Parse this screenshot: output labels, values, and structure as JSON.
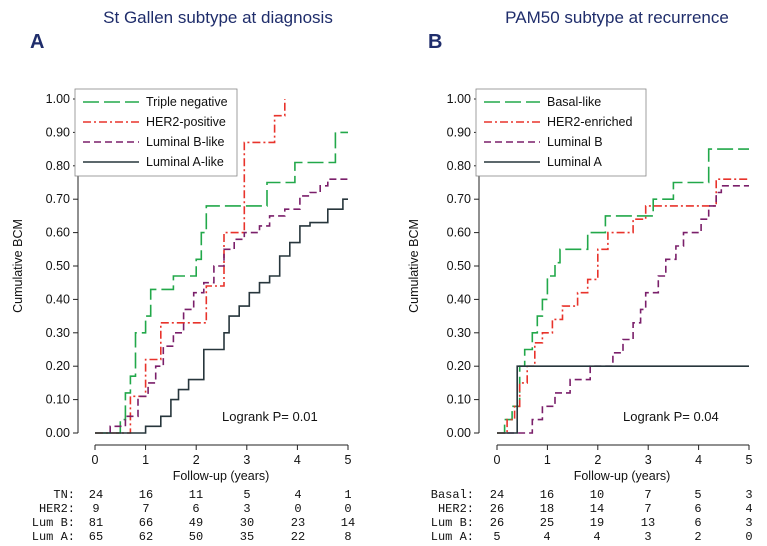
{
  "chart_data": [
    {
      "type": "line",
      "panel_letter": "A",
      "title": "St Gallen subtype at diagnosis",
      "xlabel": "Follow-up (years)",
      "ylabel": "Cumulative BCM",
      "xlim": [
        0,
        5
      ],
      "ylim": [
        0,
        1
      ],
      "x_ticks": [
        "0",
        "1",
        "2",
        "3",
        "4",
        "5"
      ],
      "y_ticks": [
        "0.00",
        "0.10",
        "0.20",
        "0.30",
        "0.40",
        "0.50",
        "0.60",
        "0.70",
        "0.80",
        "0.90",
        "1.00"
      ],
      "grid": false,
      "legend_position": "top-left",
      "annotation": "Logrank P= 0.01",
      "series": [
        {
          "name": "Triple negative",
          "color": "#22a84a",
          "dash": "long-dash",
          "steps": [
            [
              0,
              0
            ],
            [
              0.5,
              0
            ],
            [
              0.5,
              0.04
            ],
            [
              0.6,
              0.04
            ],
            [
              0.6,
              0.12
            ],
            [
              0.7,
              0.12
            ],
            [
              0.7,
              0.17
            ],
            [
              0.8,
              0.17
            ],
            [
              0.8,
              0.3
            ],
            [
              1.0,
              0.3
            ],
            [
              1.0,
              0.35
            ],
            [
              1.1,
              0.35
            ],
            [
              1.1,
              0.43
            ],
            [
              1.55,
              0.43
            ],
            [
              1.55,
              0.47
            ],
            [
              2.0,
              0.47
            ],
            [
              2.0,
              0.52
            ],
            [
              2.1,
              0.52
            ],
            [
              2.1,
              0.6
            ],
            [
              2.2,
              0.6
            ],
            [
              2.2,
              0.68
            ],
            [
              3.4,
              0.68
            ],
            [
              3.4,
              0.75
            ],
            [
              3.95,
              0.75
            ],
            [
              3.95,
              0.81
            ],
            [
              4.75,
              0.81
            ],
            [
              4.75,
              0.9
            ],
            [
              5.0,
              0.9
            ]
          ]
        },
        {
          "name": "HER2-positive",
          "color": "#e8332b",
          "dash": "dash-dot",
          "steps": [
            [
              0,
              0
            ],
            [
              0.7,
              0
            ],
            [
              0.7,
              0.11
            ],
            [
              1.0,
              0.11
            ],
            [
              1.0,
              0.22
            ],
            [
              1.3,
              0.22
            ],
            [
              1.3,
              0.33
            ],
            [
              2.2,
              0.33
            ],
            [
              2.2,
              0.44
            ],
            [
              2.55,
              0.44
            ],
            [
              2.55,
              0.6
            ],
            [
              2.95,
              0.6
            ],
            [
              2.95,
              0.87
            ],
            [
              3.55,
              0.87
            ],
            [
              3.55,
              0.95
            ],
            [
              3.75,
              0.95
            ],
            [
              3.75,
              1.0
            ]
          ]
        },
        {
          "name": "Luminal B-like",
          "color": "#7a1f6a",
          "dash": "medium-dash",
          "steps": [
            [
              0.3,
              0
            ],
            [
              0.3,
              0.02
            ],
            [
              0.6,
              0.02
            ],
            [
              0.6,
              0.05
            ],
            [
              0.85,
              0.05
            ],
            [
              0.85,
              0.11
            ],
            [
              1.05,
              0.11
            ],
            [
              1.05,
              0.15
            ],
            [
              1.2,
              0.15
            ],
            [
              1.2,
              0.2
            ],
            [
              1.35,
              0.2
            ],
            [
              1.35,
              0.26
            ],
            [
              1.55,
              0.26
            ],
            [
              1.55,
              0.3
            ],
            [
              1.75,
              0.3
            ],
            [
              1.75,
              0.37
            ],
            [
              1.95,
              0.37
            ],
            [
              1.95,
              0.42
            ],
            [
              2.15,
              0.42
            ],
            [
              2.15,
              0.45
            ],
            [
              2.35,
              0.45
            ],
            [
              2.35,
              0.5
            ],
            [
              2.55,
              0.5
            ],
            [
              2.55,
              0.55
            ],
            [
              2.75,
              0.55
            ],
            [
              2.75,
              0.58
            ],
            [
              2.95,
              0.58
            ],
            [
              2.95,
              0.6
            ],
            [
              3.25,
              0.6
            ],
            [
              3.25,
              0.62
            ],
            [
              3.45,
              0.62
            ],
            [
              3.45,
              0.65
            ],
            [
              3.75,
              0.65
            ],
            [
              3.75,
              0.67
            ],
            [
              4.05,
              0.67
            ],
            [
              4.05,
              0.71
            ],
            [
              4.25,
              0.71
            ],
            [
              4.25,
              0.72
            ],
            [
              4.45,
              0.72
            ],
            [
              4.45,
              0.74
            ],
            [
              4.6,
              0.74
            ],
            [
              4.6,
              0.76
            ],
            [
              5.0,
              0.76
            ]
          ]
        },
        {
          "name": "Luminal A-like",
          "color": "#27363c",
          "dash": "solid",
          "steps": [
            [
              0,
              0
            ],
            [
              1.0,
              0
            ],
            [
              1.0,
              0.02
            ],
            [
              1.3,
              0.02
            ],
            [
              1.3,
              0.05
            ],
            [
              1.5,
              0.05
            ],
            [
              1.5,
              0.1
            ],
            [
              1.65,
              0.1
            ],
            [
              1.65,
              0.13
            ],
            [
              1.85,
              0.13
            ],
            [
              1.85,
              0.16
            ],
            [
              2.15,
              0.16
            ],
            [
              2.15,
              0.25
            ],
            [
              2.55,
              0.25
            ],
            [
              2.55,
              0.3
            ],
            [
              2.65,
              0.3
            ],
            [
              2.65,
              0.35
            ],
            [
              2.85,
              0.35
            ],
            [
              2.85,
              0.38
            ],
            [
              3.05,
              0.38
            ],
            [
              3.05,
              0.42
            ],
            [
              3.25,
              0.42
            ],
            [
              3.25,
              0.45
            ],
            [
              3.45,
              0.45
            ],
            [
              3.45,
              0.47
            ],
            [
              3.65,
              0.47
            ],
            [
              3.65,
              0.53
            ],
            [
              3.85,
              0.53
            ],
            [
              3.85,
              0.57
            ],
            [
              4.05,
              0.57
            ],
            [
              4.05,
              0.62
            ],
            [
              4.25,
              0.62
            ],
            [
              4.25,
              0.63
            ],
            [
              4.6,
              0.63
            ],
            [
              4.6,
              0.67
            ],
            [
              4.9,
              0.67
            ],
            [
              4.9,
              0.7
            ],
            [
              5.0,
              0.7
            ]
          ]
        }
      ],
      "risk_table": [
        {
          "label": "TN:",
          "values": [
            "24",
            "16",
            "11",
            "5",
            "4",
            "1"
          ]
        },
        {
          "label": "HER2:",
          "values": [
            "9",
            "7",
            "6",
            "3",
            "0",
            "0"
          ]
        },
        {
          "label": "Lum B:",
          "values": [
            "81",
            "66",
            "49",
            "30",
            "23",
            "14"
          ]
        },
        {
          "label": "Lum A:",
          "values": [
            "65",
            "62",
            "50",
            "35",
            "22",
            "8"
          ]
        }
      ]
    },
    {
      "type": "line",
      "panel_letter": "B",
      "title": "PAM50 subtype at recurrence",
      "xlabel": "Follow-up (years)",
      "ylabel": "Cumulative BCM",
      "xlim": [
        0,
        5
      ],
      "ylim": [
        0,
        1
      ],
      "x_ticks": [
        "0",
        "1",
        "2",
        "3",
        "4",
        "5"
      ],
      "y_ticks": [
        "0.00",
        "0.10",
        "0.20",
        "0.30",
        "0.40",
        "0.50",
        "0.60",
        "0.70",
        "0.80",
        "0.90",
        "1.00"
      ],
      "grid": false,
      "legend_position": "top-left",
      "annotation": "Logrank P= 0.04",
      "series": [
        {
          "name": "Basal-like",
          "color": "#22a84a",
          "dash": "long-dash",
          "steps": [
            [
              0,
              0
            ],
            [
              0.15,
              0
            ],
            [
              0.15,
              0.04
            ],
            [
              0.3,
              0.04
            ],
            [
              0.3,
              0.08
            ],
            [
              0.45,
              0.08
            ],
            [
              0.45,
              0.2
            ],
            [
              0.55,
              0.2
            ],
            [
              0.55,
              0.25
            ],
            [
              0.7,
              0.25
            ],
            [
              0.7,
              0.3
            ],
            [
              0.8,
              0.3
            ],
            [
              0.8,
              0.35
            ],
            [
              0.9,
              0.35
            ],
            [
              0.9,
              0.4
            ],
            [
              1.0,
              0.4
            ],
            [
              1.0,
              0.47
            ],
            [
              1.15,
              0.47
            ],
            [
              1.15,
              0.51
            ],
            [
              1.25,
              0.51
            ],
            [
              1.25,
              0.55
            ],
            [
              1.8,
              0.55
            ],
            [
              1.8,
              0.6
            ],
            [
              2.15,
              0.6
            ],
            [
              2.15,
              0.65
            ],
            [
              3.1,
              0.65
            ],
            [
              3.1,
              0.7
            ],
            [
              3.5,
              0.7
            ],
            [
              3.5,
              0.75
            ],
            [
              4.2,
              0.75
            ],
            [
              4.2,
              0.85
            ],
            [
              5.0,
              0.85
            ]
          ]
        },
        {
          "name": "HER2-enriched",
          "color": "#e8332b",
          "dash": "dash-dot",
          "steps": [
            [
              0,
              0
            ],
            [
              0.2,
              0
            ],
            [
              0.2,
              0.04
            ],
            [
              0.35,
              0.04
            ],
            [
              0.35,
              0.08
            ],
            [
              0.45,
              0.08
            ],
            [
              0.45,
              0.15
            ],
            [
              0.6,
              0.15
            ],
            [
              0.6,
              0.2
            ],
            [
              0.75,
              0.2
            ],
            [
              0.75,
              0.27
            ],
            [
              0.9,
              0.27
            ],
            [
              0.9,
              0.3
            ],
            [
              1.1,
              0.3
            ],
            [
              1.1,
              0.34
            ],
            [
              1.3,
              0.34
            ],
            [
              1.3,
              0.38
            ],
            [
              1.6,
              0.38
            ],
            [
              1.6,
              0.42
            ],
            [
              1.8,
              0.42
            ],
            [
              1.8,
              0.46
            ],
            [
              2.0,
              0.46
            ],
            [
              2.0,
              0.55
            ],
            [
              2.2,
              0.55
            ],
            [
              2.2,
              0.6
            ],
            [
              2.7,
              0.6
            ],
            [
              2.7,
              0.64
            ],
            [
              2.95,
              0.64
            ],
            [
              2.95,
              0.68
            ],
            [
              4.35,
              0.68
            ],
            [
              4.35,
              0.76
            ],
            [
              5.0,
              0.76
            ]
          ]
        },
        {
          "name": "Luminal B",
          "color": "#7a1f6a",
          "dash": "medium-dash",
          "steps": [
            [
              0.2,
              0
            ],
            [
              0.7,
              0
            ],
            [
              0.7,
              0.04
            ],
            [
              0.9,
              0.04
            ],
            [
              0.9,
              0.08
            ],
            [
              1.15,
              0.08
            ],
            [
              1.15,
              0.12
            ],
            [
              1.45,
              0.12
            ],
            [
              1.45,
              0.16
            ],
            [
              1.85,
              0.16
            ],
            [
              1.85,
              0.2
            ],
            [
              2.3,
              0.2
            ],
            [
              2.3,
              0.24
            ],
            [
              2.5,
              0.24
            ],
            [
              2.5,
              0.28
            ],
            [
              2.7,
              0.28
            ],
            [
              2.7,
              0.33
            ],
            [
              2.85,
              0.33
            ],
            [
              2.85,
              0.37
            ],
            [
              2.95,
              0.37
            ],
            [
              2.95,
              0.42
            ],
            [
              3.2,
              0.42
            ],
            [
              3.2,
              0.47
            ],
            [
              3.35,
              0.47
            ],
            [
              3.35,
              0.52
            ],
            [
              3.55,
              0.52
            ],
            [
              3.55,
              0.56
            ],
            [
              3.7,
              0.56
            ],
            [
              3.7,
              0.6
            ],
            [
              4.05,
              0.6
            ],
            [
              4.05,
              0.64
            ],
            [
              4.2,
              0.64
            ],
            [
              4.2,
              0.68
            ],
            [
              4.35,
              0.68
            ],
            [
              4.35,
              0.72
            ],
            [
              4.45,
              0.72
            ],
            [
              4.45,
              0.74
            ],
            [
              5.0,
              0.74
            ]
          ]
        },
        {
          "name": "Luminal A",
          "color": "#27363c",
          "dash": "solid",
          "steps": [
            [
              0,
              0
            ],
            [
              0.4,
              0
            ],
            [
              0.4,
              0.2
            ],
            [
              5.0,
              0.2
            ]
          ]
        }
      ],
      "risk_table": [
        {
          "label": "Basal:",
          "values": [
            "24",
            "16",
            "10",
            "7",
            "5",
            "3"
          ]
        },
        {
          "label": "HER2:",
          "values": [
            "26",
            "18",
            "14",
            "7",
            "6",
            "4"
          ]
        },
        {
          "label": "Lum B:",
          "values": [
            "26",
            "25",
            "19",
            "13",
            "6",
            "3"
          ]
        },
        {
          "label": "Lum A:",
          "values": [
            "5",
            "4",
            "4",
            "3",
            "2",
            "0"
          ]
        }
      ]
    }
  ]
}
